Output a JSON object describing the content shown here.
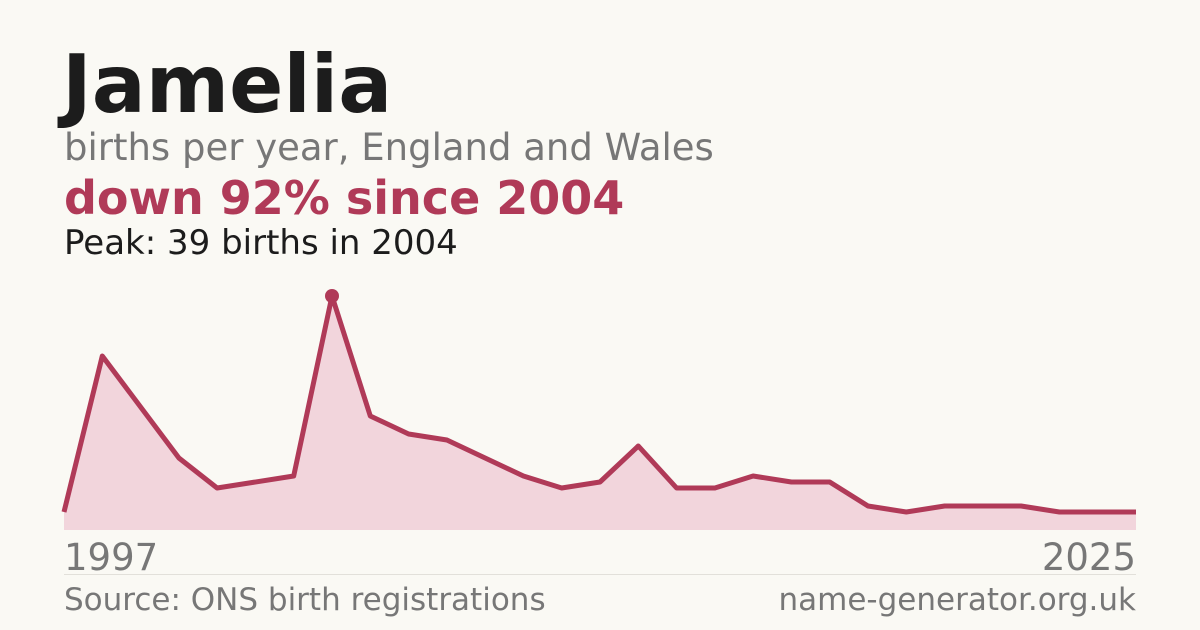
{
  "chart_data": {
    "type": "area",
    "title": "Jamelia",
    "subtitle": "births per year, England and Wales",
    "headline": "down 92% since 2004",
    "annotation": "Peak: 39 births in 2004",
    "source": "Source: ONS birth registrations",
    "site": "name-generator.org.uk",
    "x": [
      1997,
      1998,
      2000,
      2001,
      2003,
      2004,
      2005,
      2006,
      2007,
      2008,
      2009,
      2010,
      2011,
      2012,
      2013,
      2014,
      2015,
      2016,
      2017,
      2018,
      2019,
      2020,
      2022,
      2023,
      2024,
      2025
    ],
    "values": [
      3,
      29,
      12,
      7,
      9,
      39,
      19,
      16,
      15,
      12,
      9,
      7,
      8,
      14,
      7,
      7,
      9,
      8,
      8,
      4,
      3,
      4,
      4,
      3,
      3,
      3
    ],
    "xlim": [
      1997,
      2025
    ],
    "ylim": [
      0,
      39
    ],
    "color": "#b03a58",
    "fill": "#f2d5dc"
  }
}
